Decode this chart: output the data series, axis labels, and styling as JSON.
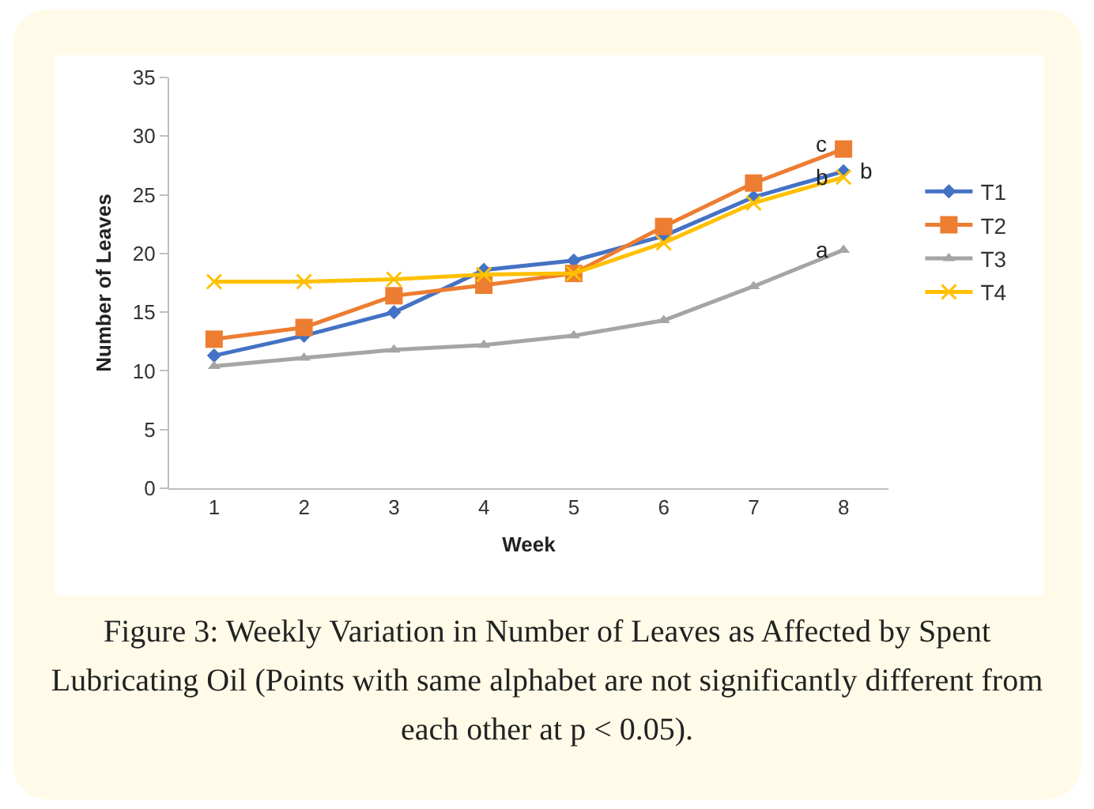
{
  "chart_data": {
    "type": "line",
    "xlabel": "Week",
    "ylabel": "Number of Leaves",
    "categories": [
      "1",
      "2",
      "3",
      "4",
      "5",
      "6",
      "7",
      "8"
    ],
    "ylim": [
      0,
      35
    ],
    "yticks": [
      0,
      5,
      10,
      15,
      20,
      25,
      30,
      35
    ],
    "grid": false,
    "legend": "right",
    "series": [
      {
        "name": "T1",
        "color": "#4472c4",
        "marker": "diamond",
        "values": [
          11.3,
          13.0,
          15.0,
          18.6,
          19.4,
          21.5,
          24.8,
          27.0
        ]
      },
      {
        "name": "T2",
        "color": "#ed7d31",
        "marker": "square",
        "values": [
          12.7,
          13.7,
          16.4,
          17.3,
          18.3,
          22.3,
          26.0,
          28.9
        ]
      },
      {
        "name": "T3",
        "color": "#a5a5a5",
        "marker": "triangle",
        "values": [
          10.4,
          11.1,
          11.8,
          12.2,
          13.0,
          14.3,
          17.2,
          20.3
        ]
      },
      {
        "name": "T4",
        "color": "#ffc000",
        "marker": "cross",
        "values": [
          17.6,
          17.6,
          17.8,
          18.2,
          18.3,
          20.9,
          24.3,
          26.5
        ]
      }
    ],
    "annotations": [
      {
        "text": "c",
        "x": "8",
        "y": 29.3
      },
      {
        "text": "b",
        "x": "8",
        "y": 26.5
      },
      {
        "text": "b",
        "x": "8",
        "y": 27.0
      },
      {
        "text": "a",
        "x": "8",
        "y": 20.3
      },
      "Figure 3: Weekly Variation in Number of Leaves as Affected by Spent Lubricating Oil (Points with same alphabet are not significantly different from each other at p < 0.05)."
    ]
  }
}
